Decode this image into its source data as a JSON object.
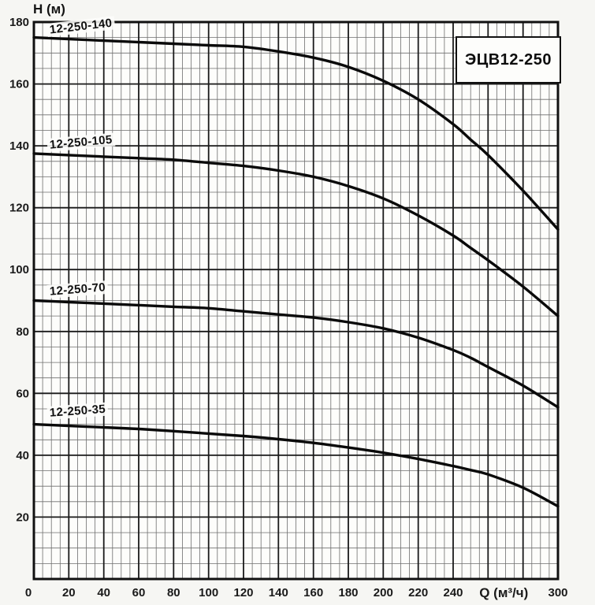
{
  "page": {
    "title_box_label": "ЭЦВ12-250",
    "y_axis_title": "H (м)"
  },
  "colors": {
    "background": "#f6f6f3",
    "plot_background": "#fdfdfb",
    "grid_minor": "#6e6e6e",
    "grid_major": "#1a1a1a",
    "border": "#111111",
    "curve": "#0a0a0a",
    "text": "#1a1a1a"
  },
  "chart_data": {
    "type": "line",
    "title": "ЭЦВ12-250",
    "xlabel": "Q (м³/ч)",
    "ylabel": "H (м)",
    "xlim": [
      0,
      300
    ],
    "ylim": [
      0,
      180
    ],
    "x_major_step": 20,
    "x_minor_step": 5,
    "y_major_step": 20,
    "y_minor_step": 5,
    "grid": "both",
    "legend_position": "labels-on-curves",
    "x_tick_values": [
      0,
      20,
      40,
      60,
      80,
      100,
      120,
      140,
      160,
      180,
      200,
      220,
      240,
      300
    ],
    "y_tick_values": [
      180,
      160,
      140,
      120,
      100,
      80,
      60,
      40,
      20
    ],
    "xlabel_anchor_q": 269,
    "series": [
      {
        "name": "12-250-140",
        "points": [
          [
            0,
            175
          ],
          [
            20,
            174.5
          ],
          [
            40,
            174
          ],
          [
            60,
            173.5
          ],
          [
            80,
            173
          ],
          [
            100,
            172.5
          ],
          [
            120,
            172
          ],
          [
            140,
            170.5
          ],
          [
            160,
            168.5
          ],
          [
            180,
            165.5
          ],
          [
            200,
            161
          ],
          [
            220,
            155
          ],
          [
            240,
            147
          ],
          [
            250,
            142
          ],
          [
            260,
            137
          ],
          [
            280,
            125.5
          ],
          [
            300,
            113
          ]
        ]
      },
      {
        "name": "12-250-105",
        "points": [
          [
            0,
            137.5
          ],
          [
            20,
            137
          ],
          [
            40,
            136.5
          ],
          [
            60,
            136
          ],
          [
            80,
            135.5
          ],
          [
            100,
            134.5
          ],
          [
            120,
            133.5
          ],
          [
            140,
            132
          ],
          [
            160,
            130
          ],
          [
            180,
            127
          ],
          [
            200,
            123
          ],
          [
            220,
            117.5
          ],
          [
            240,
            111
          ],
          [
            250,
            107
          ],
          [
            260,
            103
          ],
          [
            280,
            94.5
          ],
          [
            300,
            85
          ]
        ]
      },
      {
        "name": "12-250-70",
        "points": [
          [
            0,
            90
          ],
          [
            20,
            89.5
          ],
          [
            40,
            89
          ],
          [
            60,
            88.5
          ],
          [
            80,
            88
          ],
          [
            100,
            87.5
          ],
          [
            120,
            86.5
          ],
          [
            140,
            85.5
          ],
          [
            160,
            84.5
          ],
          [
            180,
            83
          ],
          [
            200,
            81
          ],
          [
            220,
            78
          ],
          [
            240,
            74
          ],
          [
            250,
            71.5
          ],
          [
            260,
            68.5
          ],
          [
            280,
            62.5
          ],
          [
            300,
            55.5
          ]
        ]
      },
      {
        "name": "12-250-35",
        "points": [
          [
            0,
            50
          ],
          [
            20,
            49.5
          ],
          [
            40,
            49
          ],
          [
            60,
            48.5
          ],
          [
            80,
            47.8
          ],
          [
            100,
            47
          ],
          [
            120,
            46.2
          ],
          [
            140,
            45.2
          ],
          [
            160,
            44
          ],
          [
            180,
            42.5
          ],
          [
            200,
            40.8
          ],
          [
            220,
            38.8
          ],
          [
            240,
            36.5
          ],
          [
            250,
            35.2
          ],
          [
            260,
            33.8
          ],
          [
            280,
            29.5
          ],
          [
            300,
            23.5
          ]
        ]
      }
    ]
  }
}
